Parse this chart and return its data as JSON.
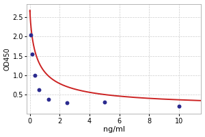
{
  "x_data": [
    0.078,
    0.156,
    0.313,
    0.625,
    1.25,
    2.5,
    5.0,
    10.0
  ],
  "y_data": [
    2.05,
    1.55,
    1.0,
    0.63,
    0.37,
    0.28,
    0.3,
    0.2
  ],
  "curve_start_x": 0.0,
  "curve_start_y": 2.65,
  "point_color": "#2b2b8f",
  "curve_color": "#cc2222",
  "xlabel": "ng/ml",
  "ylabel": "OD450",
  "xlim": [
    -0.2,
    11.5
  ],
  "ylim": [
    0.0,
    2.85
  ],
  "yticks": [
    0.5,
    1.0,
    1.5,
    2.0,
    2.5
  ],
  "xticks": [
    0,
    2,
    4,
    6,
    8,
    10
  ],
  "grid_color": "#cccccc",
  "bg_color": "#ffffff",
  "point_size": 18,
  "curve_lw": 1.4,
  "xlabel_fontsize": 8,
  "ylabel_fontsize": 7,
  "tick_fontsize": 7
}
